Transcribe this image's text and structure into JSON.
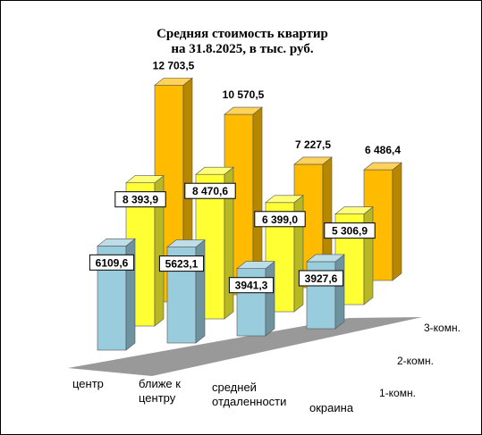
{
  "chart_data": {
    "type": "bar",
    "title": [
      "Средняя стоимость квартир",
      "на 31.8.2025, в тыс. руб."
    ],
    "categories": [
      [
        "центр"
      ],
      [
        "ближе к",
        "центру"
      ],
      [
        "средней",
        "отдаленности"
      ],
      [
        "окраина"
      ]
    ],
    "series": [
      {
        "name": "1-комн.",
        "values": [
          6109.6,
          5623.1,
          3941.3,
          3927.6
        ],
        "labels": [
          "6109,6",
          "5623,1",
          "3941,3",
          "3927,6"
        ],
        "color": "#99ccdd"
      },
      {
        "name": "2-комн.",
        "values": [
          8393.9,
          8470.6,
          6399.0,
          5306.9
        ],
        "labels": [
          "8 393,9",
          "8 470,6",
          "6 399,0",
          "5 306,9"
        ],
        "color": "#ffff33"
      },
      {
        "name": "3-комн.",
        "values": [
          12703.5,
          10570.5,
          7227.5,
          6486.4
        ],
        "labels": [
          "12 703,5",
          "10 570,5",
          "7 227,5",
          "6 486,4"
        ],
        "color": "#ffbb00"
      }
    ],
    "grid": false,
    "legend": "none",
    "colors": {
      "floor": "#999999",
      "label_box": "#ffffff"
    }
  }
}
